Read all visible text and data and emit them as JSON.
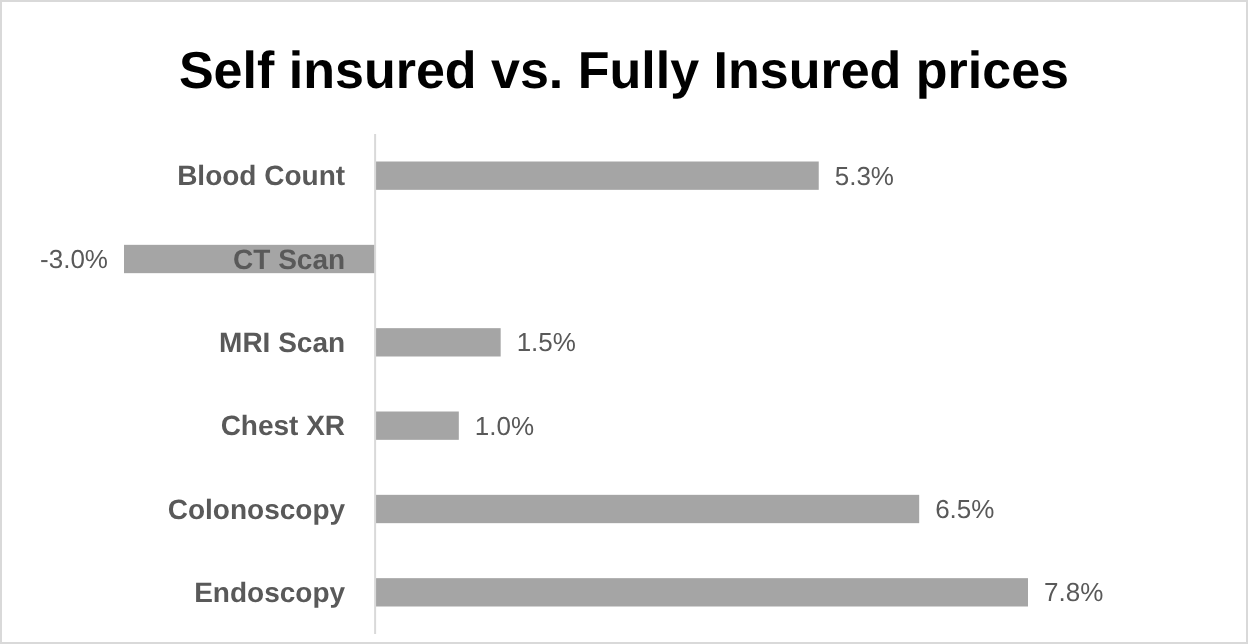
{
  "chart_data": {
    "type": "bar",
    "orientation": "horizontal",
    "title": "Self insured vs. Fully Insured prices",
    "categories": [
      "Blood Count",
      "CT Scan",
      "MRI Scan",
      "Chest XR",
      "Colonoscopy",
      "Endoscopy"
    ],
    "values": [
      5.3,
      -3.0,
      1.5,
      1.0,
      6.5,
      7.8
    ],
    "value_labels": [
      "5.3%",
      "-3.0%",
      "1.5%",
      "1.0%",
      "6.5%",
      "7.8%"
    ],
    "color": "#a5a5a5"
  }
}
